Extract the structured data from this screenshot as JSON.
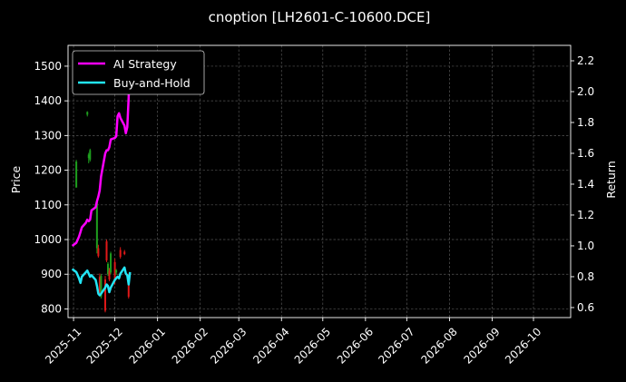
{
  "chart_data": {
    "type": "line",
    "title": "cnoption [LH2601-C-10600.DCE]",
    "ylabel_left": "Price",
    "ylabel_right": "Return",
    "grid": true,
    "legend_position": "top-left",
    "x_ticks": [
      "2025-11",
      "2025-12",
      "2026-01",
      "2026-02",
      "2026-03",
      "2026-04",
      "2026-05",
      "2026-06",
      "2026-07",
      "2026-08",
      "2026-09",
      "2026-10"
    ],
    "x_range": [
      "2025-10-28",
      "2026-10-28"
    ],
    "y_left": {
      "ylim": [
        775,
        1560
      ],
      "ticks": [
        800,
        900,
        1000,
        1100,
        1200,
        1300,
        1400,
        1500
      ]
    },
    "y_right": {
      "ylim": [
        0.535,
        2.3
      ],
      "ticks": [
        0.6,
        0.8,
        1.0,
        1.2,
        1.4,
        1.6,
        1.8,
        2.0,
        2.2
      ]
    },
    "colors": {
      "background": "#000000",
      "ai_strategy": "#ff00ff",
      "buy_and_hold": "#22e5f5",
      "candle_up": "#1e9e1e",
      "candle_down": "#e01818"
    },
    "series": [
      {
        "name": "AI Strategy",
        "axis": "right",
        "x": [
          "2025-10-31",
          "2025-11-03",
          "2025-11-04",
          "2025-11-05",
          "2025-11-06",
          "2025-11-07",
          "2025-11-10",
          "2025-11-11",
          "2025-11-12",
          "2025-11-13",
          "2025-11-14",
          "2025-11-17",
          "2025-11-18",
          "2025-11-19",
          "2025-11-20",
          "2025-11-21",
          "2025-11-24",
          "2025-11-25",
          "2025-11-26",
          "2025-11-27",
          "2025-11-28",
          "2025-12-01",
          "2025-12-02",
          "2025-12-03",
          "2025-12-04",
          "2025-12-05",
          "2025-12-08",
          "2025-12-09",
          "2025-12-10",
          "2025-12-11",
          "2025-12-12"
        ],
        "values": [
          1.0,
          1.02,
          1.04,
          1.06,
          1.09,
          1.12,
          1.15,
          1.17,
          1.16,
          1.17,
          1.23,
          1.25,
          1.29,
          1.32,
          1.36,
          1.45,
          1.6,
          1.62,
          1.62,
          1.64,
          1.69,
          1.7,
          1.71,
          1.84,
          1.86,
          1.83,
          1.78,
          1.73,
          1.77,
          1.96,
          2.24
        ]
      },
      {
        "name": "Buy-and-Hold",
        "axis": "right",
        "x": [
          "2025-10-31",
          "2025-11-03",
          "2025-11-04",
          "2025-11-05",
          "2025-11-06",
          "2025-11-07",
          "2025-11-10",
          "2025-11-11",
          "2025-11-12",
          "2025-11-13",
          "2025-11-14",
          "2025-11-17",
          "2025-11-18",
          "2025-11-19",
          "2025-11-20",
          "2025-11-21",
          "2025-11-24",
          "2025-11-25",
          "2025-11-26",
          "2025-11-27",
          "2025-11-28",
          "2025-12-01",
          "2025-12-02",
          "2025-12-03",
          "2025-12-04",
          "2025-12-05",
          "2025-12-08",
          "2025-12-09",
          "2025-12-10",
          "2025-12-11",
          "2025-12-12"
        ],
        "values": [
          0.85,
          0.83,
          0.81,
          0.79,
          0.76,
          0.8,
          0.83,
          0.84,
          0.82,
          0.8,
          0.81,
          0.78,
          0.74,
          0.69,
          0.68,
          0.69,
          0.73,
          0.75,
          0.74,
          0.7,
          0.73,
          0.78,
          0.79,
          0.8,
          0.79,
          0.82,
          0.86,
          0.82,
          0.81,
          0.75,
          0.83
        ]
      }
    ],
    "candles": [
      {
        "date": "2025-11-03",
        "open": 1150,
        "high": 1230,
        "low": 1150,
        "close": 1225
      },
      {
        "date": "2025-11-11",
        "open": 1360,
        "high": 1370,
        "low": 1355,
        "close": 1368
      },
      {
        "date": "2025-11-12",
        "open": 1235,
        "high": 1250,
        "low": 1220,
        "close": 1245
      },
      {
        "date": "2025-11-13",
        "open": 1230,
        "high": 1262,
        "low": 1225,
        "close": 1258
      },
      {
        "date": "2025-11-18",
        "open": 975,
        "high": 1115,
        "low": 960,
        "close": 1108
      },
      {
        "date": "2025-11-19",
        "open": 975,
        "high": 985,
        "low": 948,
        "close": 952
      },
      {
        "date": "2025-11-20",
        "open": 892,
        "high": 902,
        "low": 845,
        "close": 850
      },
      {
        "date": "2025-11-21",
        "open": 835,
        "high": 900,
        "low": 830,
        "close": 895
      },
      {
        "date": "2025-11-24",
        "open": 885,
        "high": 895,
        "low": 790,
        "close": 795
      },
      {
        "date": "2025-11-25",
        "open": 995,
        "high": 1000,
        "low": 935,
        "close": 940
      },
      {
        "date": "2025-11-26",
        "open": 900,
        "high": 935,
        "low": 895,
        "close": 930
      },
      {
        "date": "2025-11-27",
        "open": 910,
        "high": 918,
        "low": 880,
        "close": 885
      },
      {
        "date": "2025-11-28",
        "open": 905,
        "high": 965,
        "low": 900,
        "close": 960
      },
      {
        "date": "2025-12-01",
        "open": 935,
        "high": 945,
        "low": 870,
        "close": 880
      },
      {
        "date": "2025-12-02",
        "open": 905,
        "high": 915,
        "low": 898,
        "close": 912
      },
      {
        "date": "2025-12-05",
        "open": 970,
        "high": 978,
        "low": 945,
        "close": 950
      },
      {
        "date": "2025-12-08",
        "open": 965,
        "high": 970,
        "low": 955,
        "close": 958
      },
      {
        "date": "2025-12-11",
        "open": 900,
        "high": 902,
        "low": 830,
        "close": 835
      }
    ]
  }
}
